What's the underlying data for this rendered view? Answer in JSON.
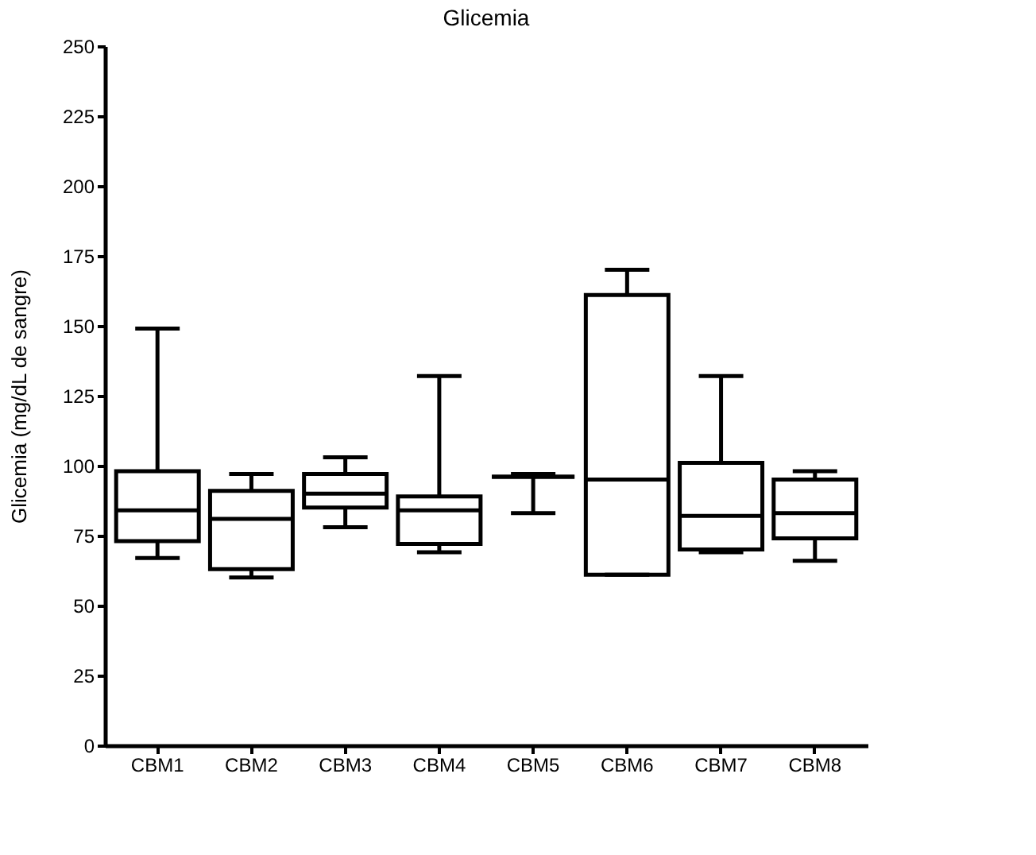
{
  "chart_data": {
    "type": "box",
    "title": "Glicemia",
    "ylabel": "Glicemia (mg/dL de sangre)",
    "categories": [
      "CBM1",
      "CBM2",
      "CBM3",
      "CBM4",
      "CBM5",
      "CBM6",
      "CBM7",
      "CBM8"
    ],
    "boxes": [
      {
        "low": 67,
        "q1": 73,
        "median": 84,
        "q3": 98,
        "high": 149
      },
      {
        "low": 60,
        "q1": 63,
        "median": 81,
        "q3": 91,
        "high": 97
      },
      {
        "low": 78,
        "q1": 85,
        "median": 90,
        "q3": 97,
        "high": 103
      },
      {
        "low": 69,
        "q1": 72,
        "median": 84,
        "q3": 89,
        "high": 132
      },
      {
        "low": 83,
        "q1": 96,
        "median": 96,
        "q3": 96,
        "high": 97
      },
      {
        "low": 61,
        "q1": 61,
        "median": 95,
        "q3": 161,
        "high": 170
      },
      {
        "low": 69,
        "q1": 70,
        "median": 82,
        "q3": 101,
        "high": 132
      },
      {
        "low": 66,
        "q1": 74,
        "median": 83,
        "q3": 95,
        "high": 98
      }
    ],
    "ylim": [
      0,
      250
    ],
    "yticks": [
      0,
      25,
      50,
      75,
      100,
      125,
      150,
      175,
      200,
      225,
      250
    ],
    "grid": false
  }
}
